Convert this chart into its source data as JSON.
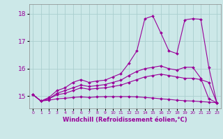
{
  "xlabel": "Windchill (Refroidissement éolien,°C)",
  "bg_color": "#cce8e8",
  "grid_color": "#aacece",
  "line_color": "#990099",
  "x_ticks": [
    0,
    1,
    2,
    3,
    4,
    5,
    6,
    7,
    8,
    9,
    10,
    11,
    12,
    13,
    14,
    15,
    16,
    17,
    18,
    19,
    20,
    21,
    22,
    23
  ],
  "y_ticks": [
    15,
    16,
    17,
    18
  ],
  "ylim": [
    14.55,
    18.35
  ],
  "xlim": [
    -0.5,
    23.5
  ],
  "series": [
    [
      15.05,
      14.82,
      14.85,
      14.9,
      14.92,
      14.95,
      14.97,
      14.95,
      14.97,
      14.98,
      14.98,
      14.98,
      14.98,
      14.97,
      14.95,
      14.93,
      14.9,
      14.88,
      14.85,
      14.83,
      14.82,
      14.8,
      14.78,
      14.76
    ],
    [
      15.05,
      14.82,
      14.9,
      15.05,
      15.1,
      15.2,
      15.3,
      15.25,
      15.28,
      15.3,
      15.35,
      15.4,
      15.5,
      15.6,
      15.7,
      15.75,
      15.8,
      15.75,
      15.7,
      15.65,
      15.65,
      15.6,
      15.5,
      14.76
    ],
    [
      15.05,
      14.82,
      14.9,
      15.1,
      15.2,
      15.3,
      15.4,
      15.35,
      15.38,
      15.42,
      15.5,
      15.58,
      15.75,
      15.9,
      16.0,
      16.05,
      16.1,
      16.0,
      15.95,
      16.05,
      16.05,
      15.65,
      14.9,
      14.76
    ],
    [
      15.05,
      14.82,
      14.95,
      15.2,
      15.3,
      15.5,
      15.6,
      15.5,
      15.55,
      15.58,
      15.7,
      15.82,
      16.2,
      16.65,
      17.82,
      17.92,
      17.3,
      16.65,
      16.55,
      17.78,
      17.82,
      17.8,
      16.05,
      14.76
    ]
  ]
}
